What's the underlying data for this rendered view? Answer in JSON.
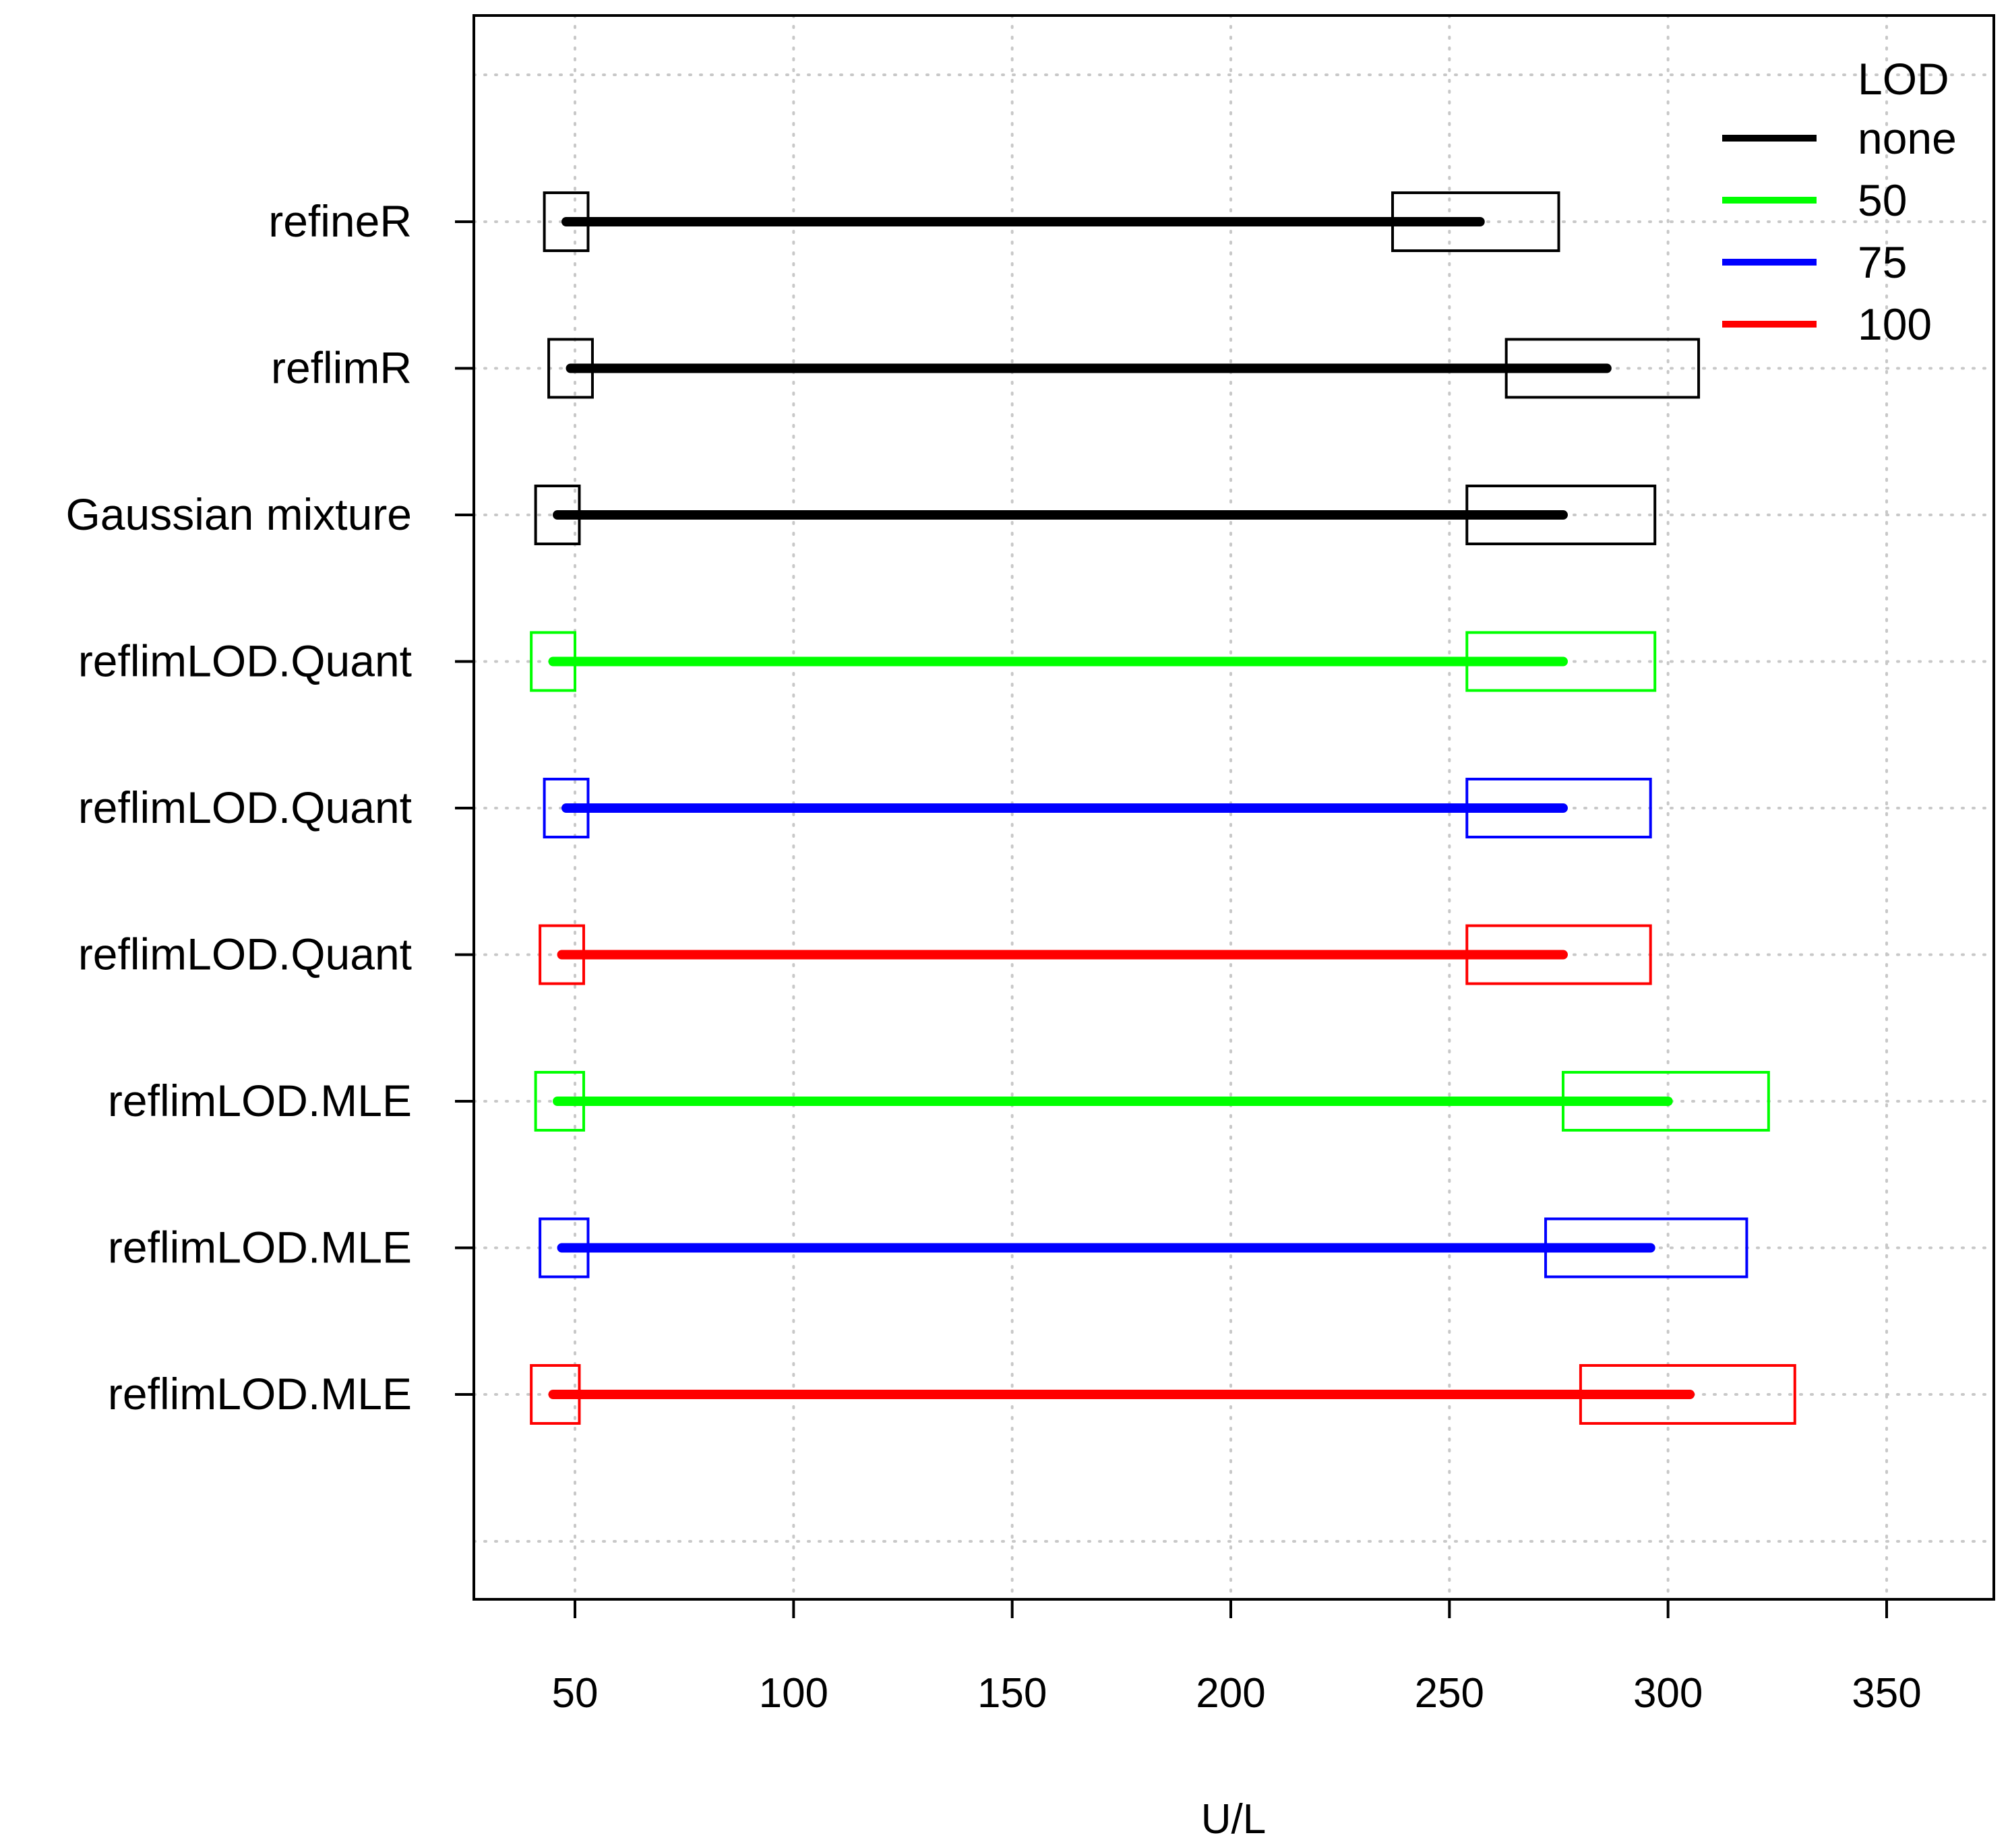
{
  "chart_data": {
    "type": "interval",
    "title": "",
    "xlabel": "U/L",
    "ylabel": "",
    "xlim": [
      27,
      375
    ],
    "xticks": [
      50,
      100,
      150,
      200,
      250,
      300,
      350
    ],
    "xtick_labels": [
      "50",
      "100",
      "150",
      "200",
      "250",
      "300",
      "350"
    ],
    "grid": true,
    "legend": {
      "title": "LOD",
      "position": "top-right",
      "entries": [
        {
          "label": "none",
          "color": "#000000"
        },
        {
          "label": "50",
          "color": "#00ff00"
        },
        {
          "label": "75",
          "color": "#0000ff"
        },
        {
          "label": "100",
          "color": "#ff0000"
        }
      ]
    },
    "rows": [
      {
        "method": "refineR",
        "lod": "none",
        "color": "#000000",
        "lower": 48,
        "upper": 257,
        "lower_ci": [
          43,
          53
        ],
        "upper_ci": [
          237,
          275
        ]
      },
      {
        "method": "reflimR",
        "lod": "none",
        "color": "#000000",
        "lower": 49,
        "upper": 286,
        "lower_ci": [
          44,
          54
        ],
        "upper_ci": [
          263,
          307
        ]
      },
      {
        "method": "Gaussian mixture",
        "lod": "none",
        "color": "#000000",
        "lower": 46,
        "upper": 276,
        "lower_ci": [
          41,
          51
        ],
        "upper_ci": [
          254,
          297
        ]
      },
      {
        "method": "reflimLOD.Quant",
        "lod": "50",
        "color": "#00ff00",
        "lower": 45,
        "upper": 276,
        "lower_ci": [
          40,
          50
        ],
        "upper_ci": [
          254,
          297
        ]
      },
      {
        "method": "reflimLOD.Quant",
        "lod": "75",
        "color": "#0000ff",
        "lower": 48,
        "upper": 276,
        "lower_ci": [
          43,
          53
        ],
        "upper_ci": [
          254,
          296
        ]
      },
      {
        "method": "reflimLOD.Quant",
        "lod": "100",
        "color": "#ff0000",
        "lower": 47,
        "upper": 276,
        "lower_ci": [
          42,
          52
        ],
        "upper_ci": [
          254,
          296
        ]
      },
      {
        "method": "reflimLOD.MLE",
        "lod": "50",
        "color": "#00ff00",
        "lower": 46,
        "upper": 300,
        "lower_ci": [
          41,
          52
        ],
        "upper_ci": [
          276,
          323
        ]
      },
      {
        "method": "reflimLOD.MLE",
        "lod": "75",
        "color": "#0000ff",
        "lower": 47,
        "upper": 296,
        "lower_ci": [
          42,
          53
        ],
        "upper_ci": [
          272,
          318
        ]
      },
      {
        "method": "reflimLOD.MLE",
        "lod": "100",
        "color": "#ff0000",
        "lower": 45,
        "upper": 305,
        "lower_ci": [
          40,
          51
        ],
        "upper_ci": [
          280,
          329
        ]
      }
    ]
  }
}
